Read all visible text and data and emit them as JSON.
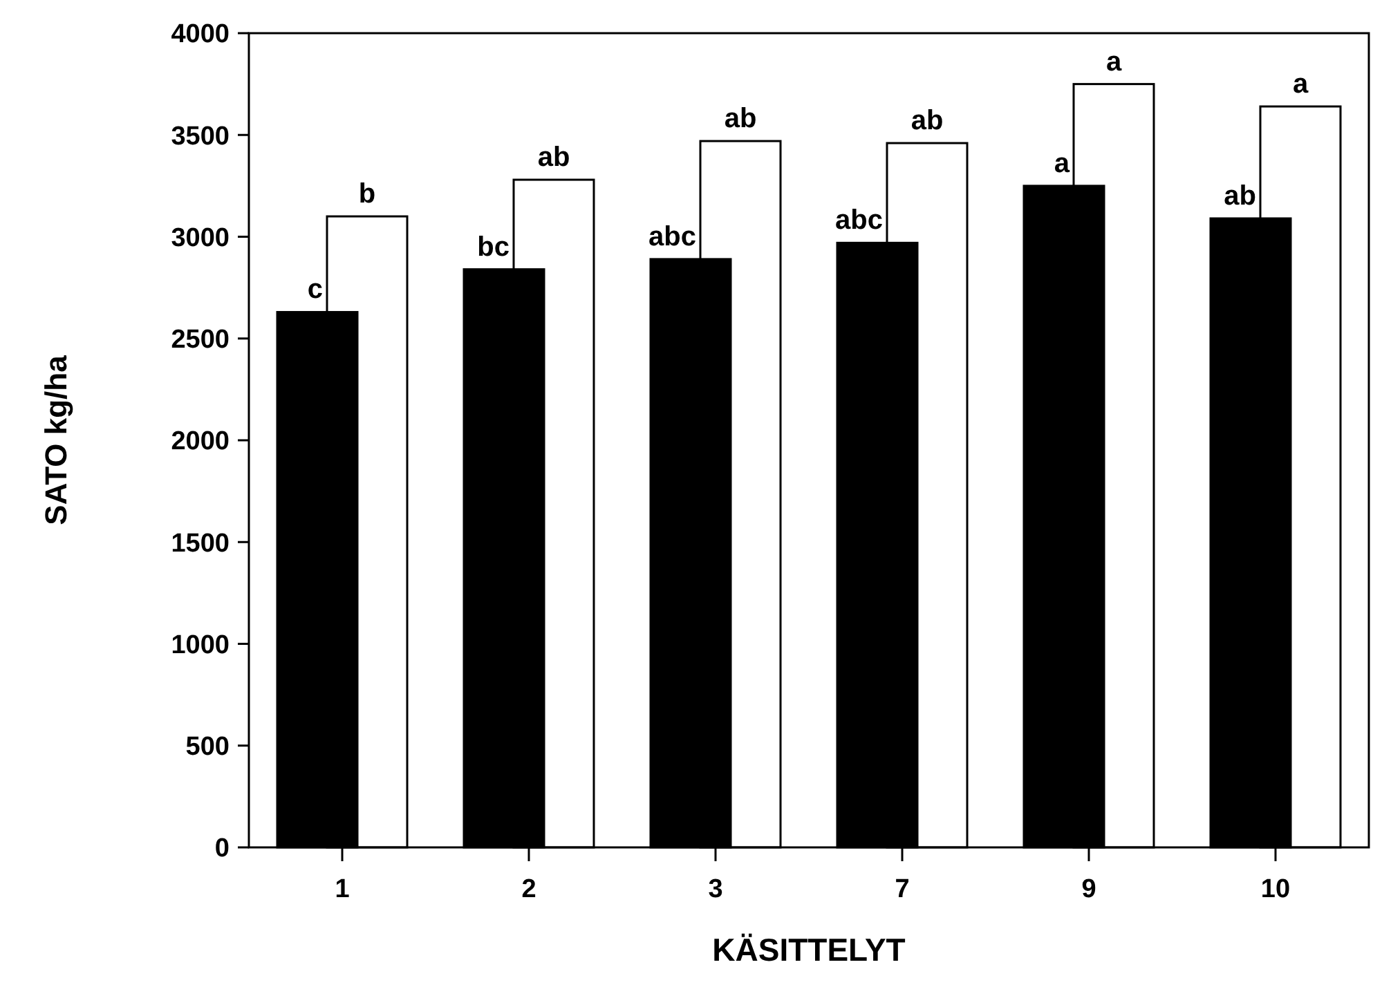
{
  "chart_data": {
    "type": "bar",
    "xlabel": "KÄSITTELYT",
    "ylabel": "SATO kg/ha",
    "categories": [
      "1",
      "2",
      "3",
      "7",
      "9",
      "10"
    ],
    "series": [
      {
        "color": "#000000",
        "values": [
          2630,
          2840,
          2890,
          2970,
          3250,
          3090
        ]
      },
      {
        "color": "#ffffff",
        "values": [
          3100,
          3280,
          3470,
          3460,
          3750,
          3640
        ]
      }
    ],
    "ylim": [
      0,
      4000
    ],
    "yticks": [
      0,
      500,
      1000,
      1500,
      2000,
      2500,
      3000,
      3500,
      4000
    ],
    "grid": false,
    "annotations": [
      {
        "text": "c",
        "x": "1",
        "y": 2630
      },
      {
        "text": "b",
        "x": "1",
        "y": 3100
      },
      {
        "text": "bc",
        "x": "2",
        "y": 2840
      },
      {
        "text": "ab",
        "x": "2",
        "y": 3280
      },
      {
        "text": "abc",
        "x": "3",
        "y": 2890
      },
      {
        "text": "ab",
        "x": "3",
        "y": 3470
      },
      {
        "text": "abc",
        "x": "7",
        "y": 2970
      },
      {
        "text": "ab",
        "x": "7",
        "y": 3460
      },
      {
        "text": "a",
        "x": "9",
        "y": 3250
      },
      {
        "text": "a",
        "x": "9",
        "y": 3750
      },
      {
        "text": "ab",
        "x": "10",
        "y": 3090
      },
      {
        "text": "a",
        "x": "10",
        "y": 3640
      }
    ]
  }
}
